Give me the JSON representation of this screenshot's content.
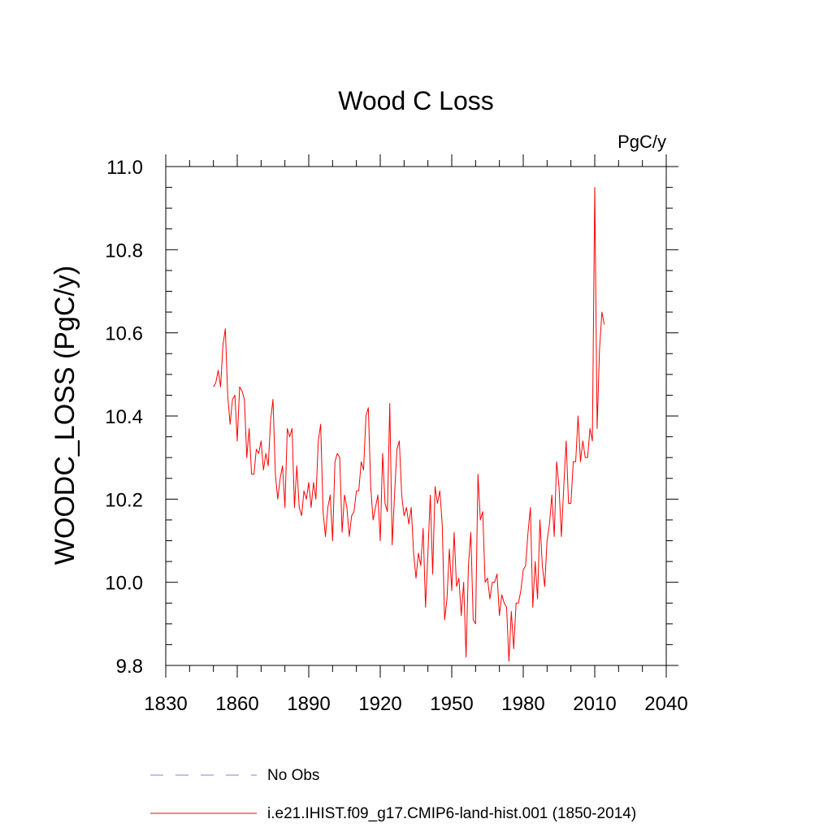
{
  "chart_data": {
    "type": "line",
    "title": "Wood C Loss",
    "units_label": "PgC/y",
    "ylabel": "WOODC_LOSS  (PgC/y)",
    "xlabel": "",
    "xlim": [
      1830,
      2040
    ],
    "ylim": [
      9.8,
      11.0
    ],
    "xticks": [
      "1830",
      "1860",
      "1890",
      "1920",
      "1950",
      "1980",
      "2010",
      "2040"
    ],
    "yticks": [
      "9.8",
      "10.0",
      "10.2",
      "10.4",
      "10.6",
      "10.8",
      "11.0"
    ],
    "grid": false,
    "legend_position": "bottom",
    "legend": [
      {
        "label": "No Obs",
        "style": "dashed",
        "color": "#8a80d0"
      },
      {
        "label": "i.e21.IHIST.f09_g17.CMIP6-land-hist.001 (1850-2014)",
        "style": "solid",
        "color": "#ff0000"
      }
    ],
    "series": [
      {
        "name": "i.e21.IHIST.f09_g17.CMIP6-land-hist.001 (1850-2014)",
        "color": "#ff0000",
        "x": [
          1850,
          1851,
          1852,
          1853,
          1854,
          1855,
          1856,
          1857,
          1858,
          1859,
          1860,
          1861,
          1862,
          1863,
          1864,
          1865,
          1866,
          1867,
          1868,
          1869,
          1870,
          1871,
          1872,
          1873,
          1874,
          1875,
          1876,
          1877,
          1878,
          1879,
          1880,
          1881,
          1882,
          1883,
          1884,
          1885,
          1886,
          1887,
          1888,
          1889,
          1890,
          1891,
          1892,
          1893,
          1894,
          1895,
          1896,
          1897,
          1898,
          1899,
          1900,
          1901,
          1902,
          1903,
          1904,
          1905,
          1906,
          1907,
          1908,
          1909,
          1910,
          1911,
          1912,
          1913,
          1914,
          1915,
          1916,
          1917,
          1918,
          1919,
          1920,
          1921,
          1922,
          1923,
          1924,
          1925,
          1926,
          1927,
          1928,
          1929,
          1930,
          1931,
          1932,
          1933,
          1934,
          1935,
          1936,
          1937,
          1938,
          1939,
          1940,
          1941,
          1942,
          1943,
          1944,
          1945,
          1946,
          1947,
          1948,
          1949,
          1950,
          1951,
          1952,
          1953,
          1954,
          1955,
          1956,
          1957,
          1958,
          1959,
          1960,
          1961,
          1962,
          1963,
          1964,
          1965,
          1966,
          1967,
          1968,
          1969,
          1970,
          1971,
          1972,
          1973,
          1974,
          1975,
          1976,
          1977,
          1978,
          1979,
          1980,
          1981,
          1982,
          1983,
          1984,
          1985,
          1986,
          1987,
          1988,
          1989,
          1990,
          1991,
          1992,
          1993,
          1994,
          1995,
          1996,
          1997,
          1998,
          1999,
          2000,
          2001,
          2002,
          2003,
          2004,
          2005,
          2006,
          2007,
          2008,
          2009,
          2010,
          2011,
          2012,
          2013,
          2014
        ],
        "values": [
          10.47,
          10.48,
          10.51,
          10.47,
          10.57,
          10.61,
          10.45,
          10.38,
          10.44,
          10.45,
          10.34,
          10.47,
          10.46,
          10.44,
          10.3,
          10.37,
          10.26,
          10.26,
          10.32,
          10.31,
          10.34,
          10.27,
          10.31,
          10.28,
          10.39,
          10.44,
          10.26,
          10.2,
          10.25,
          10.28,
          10.18,
          10.37,
          10.35,
          10.37,
          10.18,
          10.28,
          10.18,
          10.16,
          10.22,
          10.2,
          10.24,
          10.18,
          10.24,
          10.2,
          10.34,
          10.38,
          10.17,
          10.11,
          10.18,
          10.21,
          10.1,
          10.29,
          10.31,
          10.3,
          10.12,
          10.21,
          10.18,
          10.11,
          10.16,
          10.17,
          10.22,
          10.22,
          10.29,
          10.27,
          10.4,
          10.42,
          10.23,
          10.15,
          10.18,
          10.21,
          10.1,
          10.31,
          10.19,
          10.17,
          10.43,
          10.09,
          10.21,
          10.32,
          10.34,
          10.21,
          10.16,
          10.18,
          10.14,
          10.18,
          10.07,
          10.01,
          10.07,
          10.04,
          10.13,
          9.94,
          10.07,
          10.21,
          10.02,
          10.23,
          10.19,
          10.22,
          10.14,
          9.91,
          9.96,
          10.08,
          9.98,
          10.12,
          9.99,
          10.01,
          9.92,
          10.0,
          9.82,
          10.04,
          10.12,
          9.91,
          9.9,
          10.26,
          10.15,
          10.17,
          10.0,
          10.01,
          9.96,
          10.0,
          10.0,
          10.02,
          9.92,
          9.97,
          9.95,
          9.94,
          9.81,
          9.93,
          9.84,
          9.95,
          9.95,
          9.98,
          10.03,
          10.04,
          10.12,
          10.18,
          9.94,
          10.05,
          9.96,
          10.15,
          10.04,
          9.99,
          10.1,
          10.14,
          10.21,
          10.11,
          10.29,
          10.23,
          10.11,
          10.23,
          10.34,
          10.19,
          10.19,
          10.29,
          10.29,
          10.4,
          10.29,
          10.34,
          10.3,
          10.3,
          10.37,
          10.34,
          10.95,
          10.37,
          10.56,
          10.65,
          10.62
        ]
      },
      {
        "name": "No Obs",
        "color": "#8a80d0",
        "x": [],
        "values": []
      }
    ]
  }
}
